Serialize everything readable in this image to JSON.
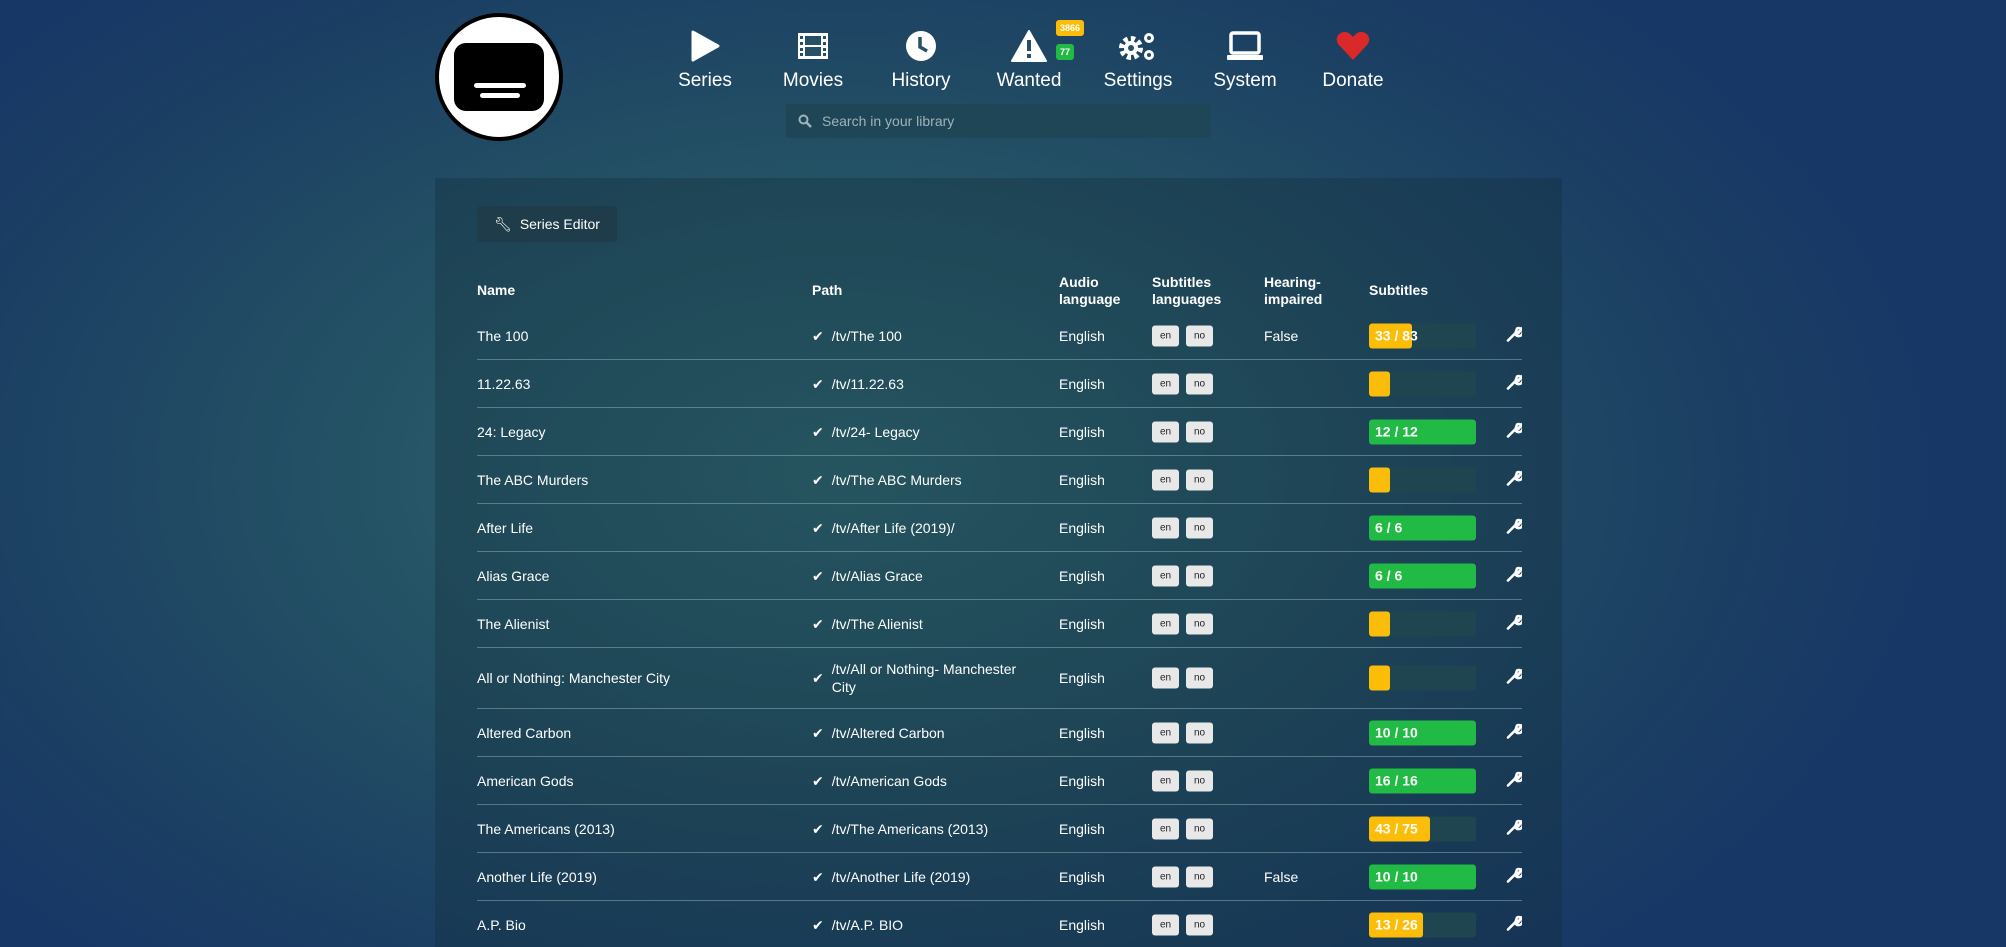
{
  "colors": {
    "warning": "#fbbd08",
    "success": "#21ba45",
    "heart": "#db2828"
  },
  "nav": [
    {
      "label": "Series",
      "icon": "play-icon"
    },
    {
      "label": "Movies",
      "icon": "film-icon"
    },
    {
      "label": "History",
      "icon": "clock-icon"
    },
    {
      "label": "Wanted",
      "icon": "warning-icon",
      "badges": [
        "3866",
        "77"
      ]
    },
    {
      "label": "Settings",
      "icon": "cogs-icon"
    },
    {
      "label": "System",
      "icon": "laptop-icon"
    },
    {
      "label": "Donate",
      "icon": "heart-icon"
    }
  ],
  "search": {
    "placeholder": "Search in your library",
    "value": ""
  },
  "toolbar": {
    "series_editor": "Series Editor"
  },
  "table": {
    "headers": {
      "name": "Name",
      "path": "Path",
      "audio": "Audio language",
      "subs": "Subtitles languages",
      "hi": "Hearing-impaired",
      "subtitles": "Subtitles"
    },
    "rows": [
      {
        "name": "The 100",
        "path": "/tv/The 100",
        "audio": "English",
        "langs": [
          "en",
          "no"
        ],
        "hi": "False",
        "progress": "33 / 83",
        "fraction": 0.398
      },
      {
        "name": "11.22.63",
        "path": "/tv/11.22.63",
        "audio": "English",
        "langs": [
          "en",
          "no"
        ],
        "hi": "",
        "progress": "",
        "fraction": 0
      },
      {
        "name": "24: Legacy",
        "path": "/tv/24- Legacy",
        "audio": "English",
        "langs": [
          "en",
          "no"
        ],
        "hi": "",
        "progress": "12 / 12",
        "fraction": 1
      },
      {
        "name": "The ABC Murders",
        "path": "/tv/The ABC Murders",
        "audio": "English",
        "langs": [
          "en",
          "no"
        ],
        "hi": "",
        "progress": "",
        "fraction": 0
      },
      {
        "name": "After Life",
        "path": "/tv/After Life (2019)/",
        "audio": "English",
        "langs": [
          "en",
          "no"
        ],
        "hi": "",
        "progress": "6 / 6",
        "fraction": 1
      },
      {
        "name": "Alias Grace",
        "path": "/tv/Alias Grace",
        "audio": "English",
        "langs": [
          "en",
          "no"
        ],
        "hi": "",
        "progress": "6 / 6",
        "fraction": 1
      },
      {
        "name": "The Alienist",
        "path": "/tv/The Alienist",
        "audio": "English",
        "langs": [
          "en",
          "no"
        ],
        "hi": "",
        "progress": "",
        "fraction": 0
      },
      {
        "name": "All or Nothing: Manchester City",
        "path": "/tv/All or Nothing- Manchester City",
        "audio": "English",
        "langs": [
          "en",
          "no"
        ],
        "hi": "",
        "progress": "",
        "fraction": 0
      },
      {
        "name": "Altered Carbon",
        "path": "/tv/Altered Carbon",
        "audio": "English",
        "langs": [
          "en",
          "no"
        ],
        "hi": "",
        "progress": "10 / 10",
        "fraction": 1
      },
      {
        "name": "American Gods",
        "path": "/tv/American Gods",
        "audio": "English",
        "langs": [
          "en",
          "no"
        ],
        "hi": "",
        "progress": "16 / 16",
        "fraction": 1
      },
      {
        "name": "The Americans (2013)",
        "path": "/tv/The Americans (2013)",
        "audio": "English",
        "langs": [
          "en",
          "no"
        ],
        "hi": "",
        "progress": "43 / 75",
        "fraction": 0.573
      },
      {
        "name": "Another Life (2019)",
        "path": "/tv/Another Life (2019)",
        "audio": "English",
        "langs": [
          "en",
          "no"
        ],
        "hi": "False",
        "progress": "10 / 10",
        "fraction": 1
      },
      {
        "name": "A.P. Bio",
        "path": "/tv/A.P. BIO",
        "audio": "English",
        "langs": [
          "en",
          "no"
        ],
        "hi": "",
        "progress": "13 / 26",
        "fraction": 0.5
      }
    ]
  }
}
